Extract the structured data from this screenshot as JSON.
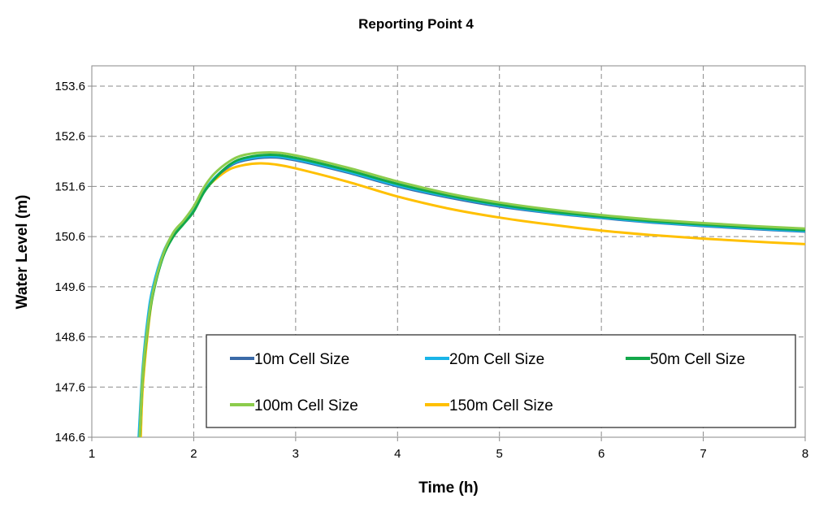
{
  "chart_data": {
    "type": "line",
    "title": "Reporting Point 4",
    "xlabel": "Time (h)",
    "ylabel": "Water Level (m)",
    "xlim": [
      1,
      8
    ],
    "ylim": [
      146.6,
      154.0
    ],
    "x_ticks": [
      "1",
      "2",
      "3",
      "4",
      "5",
      "6",
      "7",
      "8"
    ],
    "y_ticks": [
      "146.6",
      "147.6",
      "148.6",
      "149.6",
      "150.6",
      "151.6",
      "152.6",
      "153.6"
    ],
    "grid": true,
    "legend_position": "bottom-right-inside",
    "series": [
      {
        "name": "10m Cell Size",
        "color": "#3a6aa8",
        "x": [
          1.47,
          1.5,
          1.55,
          1.6,
          1.7,
          1.8,
          1.9,
          2.0,
          2.1,
          2.2,
          2.35,
          2.5,
          2.75,
          3.0,
          3.5,
          4.0,
          4.5,
          5.0,
          5.5,
          6.0,
          6.5,
          7.0,
          7.5,
          8.0
        ],
        "y": [
          146.6,
          147.9,
          148.9,
          149.55,
          150.25,
          150.65,
          150.9,
          151.15,
          151.5,
          151.75,
          152.0,
          152.12,
          152.18,
          152.12,
          151.88,
          151.6,
          151.38,
          151.2,
          151.07,
          150.97,
          150.88,
          150.81,
          150.75,
          150.7
        ]
      },
      {
        "name": "20m Cell Size",
        "color": "#19b4e8",
        "x": [
          1.46,
          1.5,
          1.55,
          1.6,
          1.7,
          1.8,
          1.9,
          2.0,
          2.1,
          2.2,
          2.35,
          2.5,
          2.75,
          3.0,
          3.5,
          4.0,
          4.5,
          5.0,
          5.5,
          6.0,
          6.5,
          7.0,
          7.5,
          8.0
        ],
        "y": [
          146.6,
          148.0,
          149.0,
          149.6,
          150.28,
          150.66,
          150.9,
          151.15,
          151.5,
          151.76,
          152.02,
          152.14,
          152.2,
          152.14,
          151.9,
          151.62,
          151.4,
          151.22,
          151.08,
          150.98,
          150.89,
          150.82,
          150.76,
          150.71
        ]
      },
      {
        "name": "50m Cell Size",
        "color": "#12a84a",
        "x": [
          1.47,
          1.5,
          1.55,
          1.6,
          1.7,
          1.8,
          1.9,
          2.0,
          2.1,
          2.2,
          2.35,
          2.5,
          2.75,
          3.0,
          3.5,
          4.0,
          4.5,
          5.0,
          5.5,
          6.0,
          6.5,
          7.0,
          7.5,
          8.0
        ],
        "y": [
          146.6,
          147.8,
          148.8,
          149.45,
          150.2,
          150.6,
          150.85,
          151.1,
          151.48,
          151.74,
          152.03,
          152.17,
          152.23,
          152.17,
          151.93,
          151.65,
          151.42,
          151.24,
          151.1,
          151.0,
          150.91,
          150.84,
          150.78,
          150.73
        ]
      },
      {
        "name": "100m Cell Size",
        "color": "#8ccc4c",
        "x": [
          1.47,
          1.5,
          1.55,
          1.6,
          1.7,
          1.8,
          1.9,
          2.0,
          2.1,
          2.2,
          2.35,
          2.5,
          2.75,
          3.0,
          3.5,
          4.0,
          4.5,
          5.0,
          5.5,
          6.0,
          6.5,
          7.0,
          7.5,
          8.0
        ],
        "y": [
          146.6,
          147.85,
          148.85,
          149.5,
          150.25,
          150.68,
          150.92,
          151.2,
          151.58,
          151.85,
          152.1,
          152.23,
          152.28,
          152.22,
          151.98,
          151.7,
          151.46,
          151.28,
          151.14,
          151.03,
          150.94,
          150.87,
          150.81,
          150.76
        ]
      },
      {
        "name": "150m Cell Size",
        "color": "#ffc000",
        "x": [
          1.48,
          1.5,
          1.55,
          1.6,
          1.7,
          1.8,
          1.9,
          2.0,
          2.1,
          2.2,
          2.35,
          2.5,
          2.65,
          2.8,
          3.0,
          3.5,
          4.0,
          4.5,
          5.0,
          5.5,
          6.0,
          6.5,
          7.0,
          7.5,
          8.0
        ],
        "y": [
          146.6,
          147.6,
          148.7,
          149.45,
          150.25,
          150.65,
          150.9,
          151.15,
          151.5,
          151.72,
          151.94,
          152.03,
          152.06,
          152.04,
          151.96,
          151.7,
          151.4,
          151.16,
          150.98,
          150.84,
          150.72,
          150.63,
          150.56,
          150.5,
          150.45
        ]
      }
    ]
  }
}
